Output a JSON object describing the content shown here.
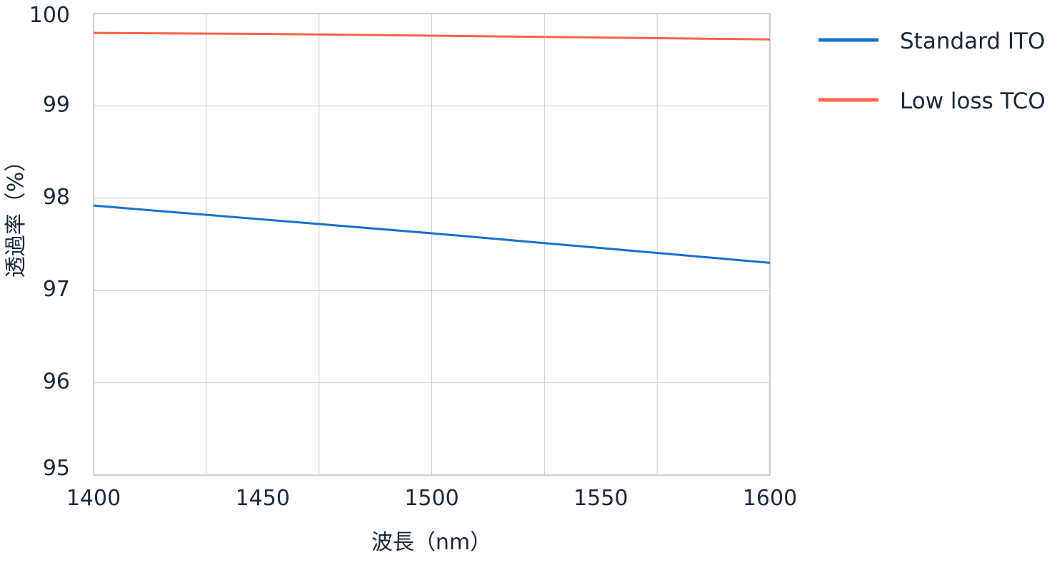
{
  "chart_data": {
    "type": "line",
    "xlabel": "波長（nm）",
    "ylabel": "透過率（%）",
    "xlim": [
      1400,
      1600
    ],
    "ylim": [
      95,
      100
    ],
    "x_ticks": [
      1400,
      1450,
      1500,
      1550,
      1600
    ],
    "y_ticks": [
      95,
      96,
      97,
      98,
      99,
      100
    ],
    "grid": true,
    "legend_position": "right",
    "series": [
      {
        "name": "Standard ITO",
        "color": "#1a6fce",
        "x": [
          1400,
          1450,
          1500,
          1550,
          1600
        ],
        "y": [
          97.92,
          97.77,
          97.62,
          97.46,
          97.3
        ]
      },
      {
        "name": "Low loss TCO",
        "color": "#f5634a",
        "x": [
          1400,
          1450,
          1500,
          1550,
          1600
        ],
        "y": [
          99.79,
          99.78,
          99.76,
          99.74,
          99.72
        ]
      }
    ]
  }
}
